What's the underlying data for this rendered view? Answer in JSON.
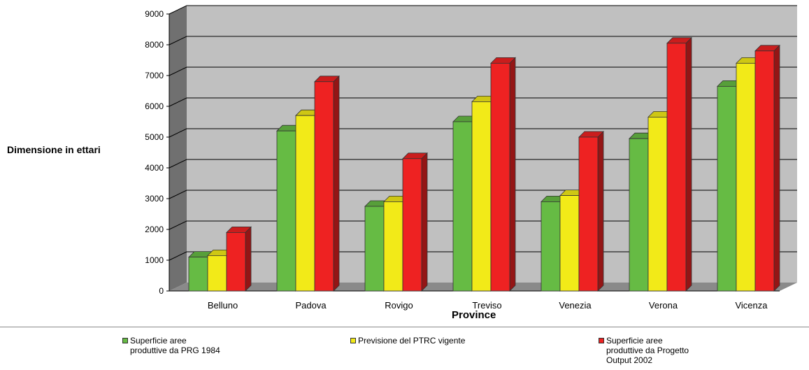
{
  "chart_data": {
    "type": "bar",
    "xlabel": "Province",
    "ylabel": "Dimensione in ettari",
    "ylim": [
      0,
      9000
    ],
    "yticks": [
      "0",
      "1000",
      "2000",
      "3000",
      "4000",
      "5000",
      "6000",
      "7000",
      "8000",
      "9000"
    ],
    "categories": [
      "Belluno",
      "Padova",
      "Rovigo",
      "Treviso",
      "Venezia",
      "Verona",
      "Vicenza"
    ],
    "series": [
      {
        "name": "Superficie aree produttive da PRG 1984",
        "color": "#66bb44",
        "values": [
          1100,
          5200,
          2750,
          5500,
          2900,
          4950,
          6650
        ]
      },
      {
        "name": "Previsione del PTRC vigente",
        "color": "#f2ea18",
        "values": [
          1150,
          5700,
          2900,
          6150,
          3100,
          5650,
          7400
        ]
      },
      {
        "name": "Superficie aree produttive da Progetto Output 2002",
        "color": "#ee2222",
        "values": [
          1900,
          6800,
          4300,
          7400,
          5000,
          8050,
          7800
        ]
      }
    ],
    "grid": true,
    "legend_position": "bottom",
    "style": "3d-clustered"
  },
  "legend": [
    {
      "text": "Superficie aree\nproduttive da PRG 1984",
      "color": "#66bb44"
    },
    {
      "text": "Previsione del PTRC vigente",
      "color": "#f2ea18"
    },
    {
      "text": "Superficie aree\nproduttive da Progetto\nOutput 2002",
      "color": "#ee2222"
    }
  ]
}
